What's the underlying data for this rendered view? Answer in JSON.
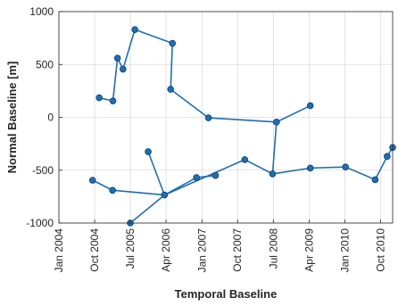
{
  "chart_data": {
    "type": "scatter",
    "xlabel": "Temporal Baseline",
    "ylabel": "Normal Baseline [m]",
    "xlim": [
      "2004-01-01",
      "2011-01-01"
    ],
    "ylim": [
      -1000,
      1000
    ],
    "grid": true,
    "legend": "none",
    "x_ticks": [
      {
        "value": "2004-01-01",
        "label": "Jan 2004"
      },
      {
        "value": "2004-10-01",
        "label": "Oct 2004"
      },
      {
        "value": "2005-07-01",
        "label": "Jul 2005"
      },
      {
        "value": "2006-04-01",
        "label": "Apr 2006"
      },
      {
        "value": "2007-01-01",
        "label": "Jan 2007"
      },
      {
        "value": "2007-10-01",
        "label": "Oct 2007"
      },
      {
        "value": "2008-07-01",
        "label": "Jul 2008"
      },
      {
        "value": "2009-04-01",
        "label": "Apr 2009"
      },
      {
        "value": "2010-01-01",
        "label": "Jan 2010"
      },
      {
        "value": "2010-10-01",
        "label": "Oct 2010"
      }
    ],
    "y_ticks": [
      {
        "value": -1000,
        "label": "-1000"
      },
      {
        "value": -500,
        "label": "-500"
      },
      {
        "value": 0,
        "label": "0"
      },
      {
        "value": 500,
        "label": "500"
      },
      {
        "value": 1000,
        "label": "1000"
      }
    ],
    "color": "#1f6fb0",
    "points": [
      {
        "id": "p1",
        "x": "2004-11-05",
        "y": 185
      },
      {
        "id": "p2",
        "x": "2005-02-18",
        "y": 155
      },
      {
        "id": "p3",
        "x": "2005-03-25",
        "y": 560
      },
      {
        "id": "p4",
        "x": "2005-05-06",
        "y": 455
      },
      {
        "id": "p5",
        "x": "2005-08-05",
        "y": 830
      },
      {
        "id": "p6",
        "x": "2006-05-20",
        "y": 700
      },
      {
        "id": "p7",
        "x": "2006-05-06",
        "y": 265
      },
      {
        "id": "p8",
        "x": "2007-02-20",
        "y": -5
      },
      {
        "id": "p9",
        "x": "2008-07-25",
        "y": -45
      },
      {
        "id": "p10",
        "x": "2009-04-10",
        "y": 110
      },
      {
        "id": "p11",
        "x": "2004-09-15",
        "y": -595
      },
      {
        "id": "p12",
        "x": "2005-02-15",
        "y": -690
      },
      {
        "id": "p13",
        "x": "2006-03-20",
        "y": -735
      },
      {
        "id": "p14",
        "x": "2005-11-15",
        "y": -325
      },
      {
        "id": "p15",
        "x": "2005-07-01",
        "y": -1000
      },
      {
        "id": "p16",
        "x": "2006-11-20",
        "y": -570
      },
      {
        "id": "p17",
        "x": "2007-04-15",
        "y": -550
      },
      {
        "id": "p18",
        "x": "2007-11-25",
        "y": -400
      },
      {
        "id": "p19",
        "x": "2008-06-25",
        "y": -535
      },
      {
        "id": "p20",
        "x": "2009-04-10",
        "y": -480
      },
      {
        "id": "p21",
        "x": "2010-01-05",
        "y": -470
      },
      {
        "id": "p22",
        "x": "2010-08-20",
        "y": -590
      },
      {
        "id": "p23",
        "x": "2010-11-20",
        "y": -370
      },
      {
        "id": "p24",
        "x": "2011-01-01",
        "y": -285
      }
    ],
    "links": [
      [
        "p1",
        "p2"
      ],
      [
        "p2",
        "p3"
      ],
      [
        "p3",
        "p4"
      ],
      [
        "p4",
        "p5"
      ],
      [
        "p5",
        "p6"
      ],
      [
        "p6",
        "p7"
      ],
      [
        "p7",
        "p8"
      ],
      [
        "p8",
        "p9"
      ],
      [
        "p9",
        "p10"
      ],
      [
        "p9",
        "p19"
      ],
      [
        "p11",
        "p12"
      ],
      [
        "p12",
        "p13"
      ],
      [
        "p13",
        "p14"
      ],
      [
        "p13",
        "p15"
      ],
      [
        "p13",
        "p16"
      ],
      [
        "p16",
        "p17"
      ],
      [
        "p13",
        "p18"
      ],
      [
        "p18",
        "p19"
      ],
      [
        "p19",
        "p20"
      ],
      [
        "p20",
        "p21"
      ],
      [
        "p21",
        "p22"
      ],
      [
        "p22",
        "p23"
      ],
      [
        "p23",
        "p24"
      ]
    ]
  }
}
